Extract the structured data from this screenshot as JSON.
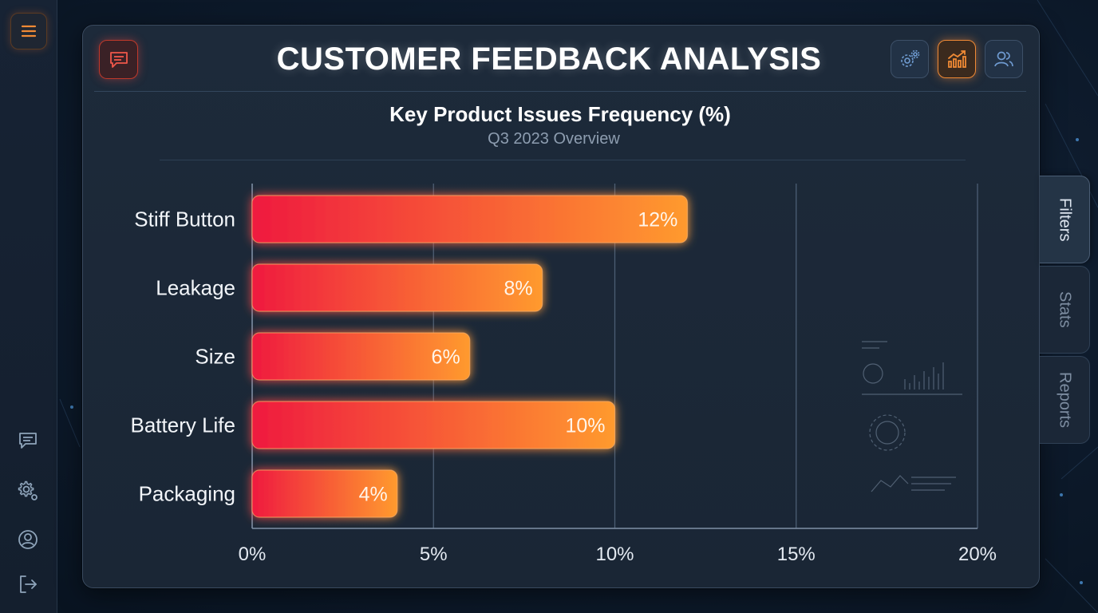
{
  "app": {
    "title": "CUSTOMER FEEDBACK ANALYSIS"
  },
  "left_rail": {
    "items": [
      {
        "icon": "menu-icon"
      },
      {
        "icon": "chat-icon"
      },
      {
        "icon": "settings-icon"
      },
      {
        "icon": "user-icon"
      },
      {
        "icon": "logout-icon"
      }
    ]
  },
  "header": {
    "left_icon": "feedback-icon",
    "right_buttons": [
      {
        "icon": "settings-icon",
        "active": false
      },
      {
        "icon": "analytics-icon",
        "active": true
      },
      {
        "icon": "users-icon",
        "active": false
      }
    ]
  },
  "side_tabs": [
    {
      "label": "Filters",
      "active": true
    },
    {
      "label": "Stats",
      "active": false
    },
    {
      "label": "Reports",
      "active": false
    }
  ],
  "colors": {
    "bar_start": "#ef1a3f",
    "bar_end": "#ff9a2e",
    "accent": "#f08a35",
    "grid": "#4c5e74"
  },
  "chart_data": {
    "type": "bar",
    "orientation": "horizontal",
    "title": "Key Product Issues Frequency (%)",
    "subtitle": "Q3 2023 Overview",
    "categories": [
      "Stiff Button",
      "Leakage",
      "Size",
      "Battery Life",
      "Packaging"
    ],
    "values": [
      12,
      8,
      6,
      10,
      4
    ],
    "value_labels": [
      "12%",
      "8%",
      "6%",
      "10%",
      "4%"
    ],
    "x_ticks": [
      "0%",
      "5%",
      "10%",
      "15%",
      "20%"
    ],
    "xlim": [
      0,
      20
    ],
    "grid": true
  }
}
